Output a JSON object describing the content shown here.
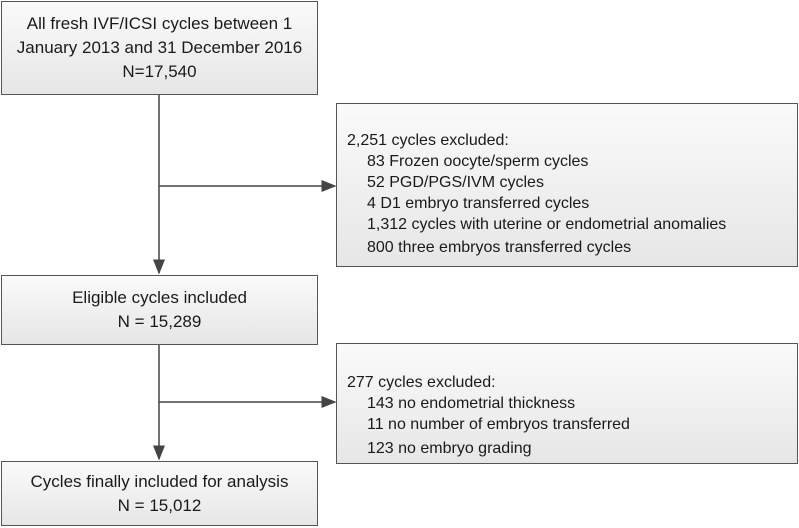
{
  "boxes": {
    "all_cycles": {
      "lines": [
        "All fresh IVF/ICSI cycles between 1",
        "January 2013 and 31 December 2016",
        "N=17,540"
      ]
    },
    "excluded_first": {
      "header": "2,251 cycles excluded:",
      "items": [
        "83 Frozen oocyte/sperm cycles",
        "52 PGD/PGS/IVM cycles",
        "4 D1 embryo transferred cycles",
        "1,312 cycles with uterine or endometrial anomalies",
        "800 three embryos transferred cycles"
      ]
    },
    "eligible": {
      "lines": [
        "Eligible cycles included",
        "N = 15,289"
      ]
    },
    "excluded_second": {
      "header": "277 cycles excluded:",
      "items": [
        "143 no endometrial thickness",
        "11 no number of embryos transferred",
        "123 no embryo grading"
      ]
    },
    "final": {
      "lines": [
        "Cycles finally included for analysis",
        "N = 15,012"
      ]
    }
  }
}
